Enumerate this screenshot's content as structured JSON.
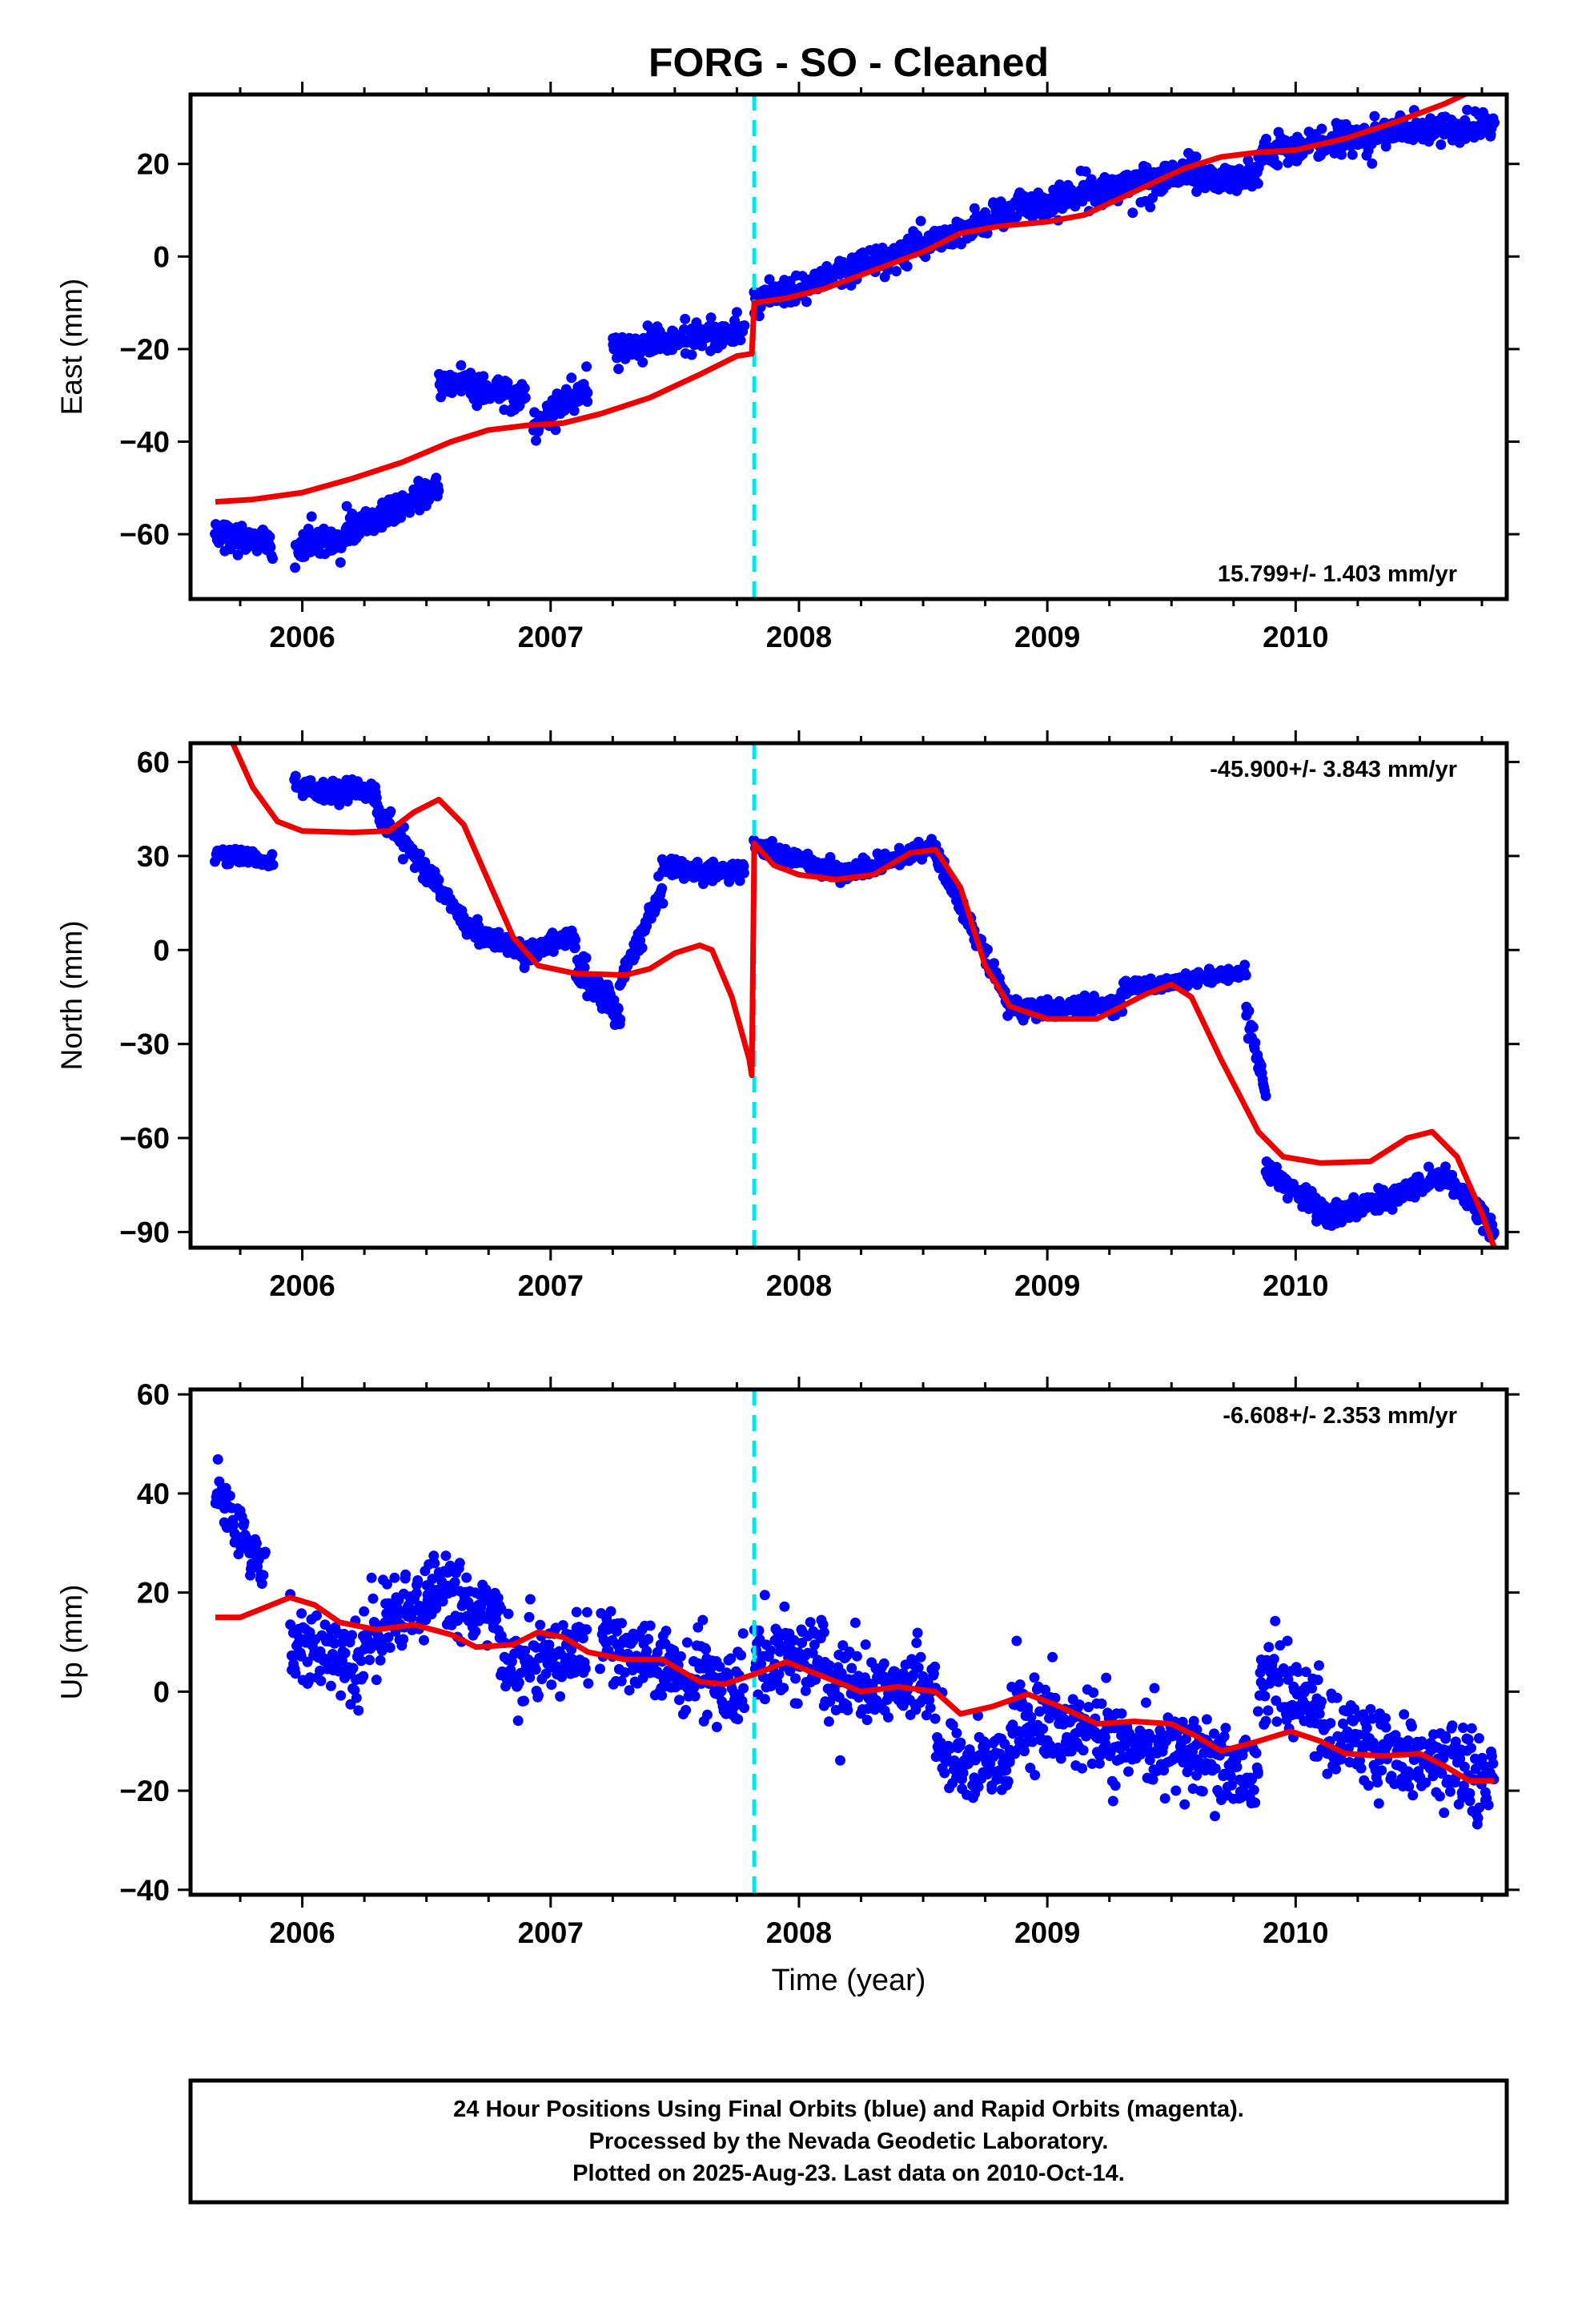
{
  "title": "FORG  - SO - Cleaned",
  "xlabel": "Time (year)",
  "x_range": [
    2005.55,
    2010.85
  ],
  "x_ticks": [
    2006,
    2007,
    2008,
    2009,
    2010
  ],
  "offset_event_year": 2007.82,
  "colors": {
    "final_orbits": "#0000ff",
    "model_fit": "#ee0000",
    "offset_marker": "#00e5ee",
    "frame": "#000000"
  },
  "chart_data": [
    {
      "type": "scatter",
      "name": "east",
      "ylabel": "East (mm)",
      "ylim": [
        -74,
        35
      ],
      "y_ticks": [
        -60,
        -40,
        -20,
        0,
        20
      ],
      "rate_label": "15.799+/- 1.403 mm/yr",
      "rate_position": "bottom-right",
      "fit_points": [
        [
          2005.65,
          -53
        ],
        [
          2005.8,
          -52.5
        ],
        [
          2006.0,
          -51
        ],
        [
          2006.2,
          -48
        ],
        [
          2006.4,
          -44.5
        ],
        [
          2006.6,
          -40
        ],
        [
          2006.75,
          -37.5
        ],
        [
          2006.9,
          -36.5
        ],
        [
          2007.05,
          -36
        ],
        [
          2007.2,
          -34
        ],
        [
          2007.4,
          -30.5
        ],
        [
          2007.6,
          -25.5
        ],
        [
          2007.75,
          -21.5
        ],
        [
          2007.81,
          -21
        ],
        [
          2007.82,
          -10
        ],
        [
          2007.95,
          -9
        ],
        [
          2008.1,
          -7
        ],
        [
          2008.3,
          -3
        ],
        [
          2008.5,
          1
        ],
        [
          2008.65,
          5
        ],
        [
          2008.8,
          6.5
        ],
        [
          2009.0,
          7.5
        ],
        [
          2009.15,
          9
        ],
        [
          2009.35,
          14
        ],
        [
          2009.55,
          19
        ],
        [
          2009.7,
          21.5
        ],
        [
          2009.85,
          22.5
        ],
        [
          2010.0,
          23
        ],
        [
          2010.2,
          25.5
        ],
        [
          2010.4,
          29
        ],
        [
          2010.6,
          33
        ],
        [
          2010.72,
          36
        ]
      ],
      "data_segments": [
        {
          "t0": 2005.65,
          "t1": 2005.88,
          "start": -60,
          "end": -61,
          "noise": 2.5
        },
        {
          "t0": 2005.97,
          "t1": 2006.2,
          "start": -64,
          "end": -59,
          "noise": 3.2
        },
        {
          "t0": 2006.2,
          "t1": 2006.55,
          "start": -59,
          "end": -50,
          "noise": 2.5
        },
        {
          "t0": 2006.55,
          "t1": 2006.9,
          "start": -27,
          "end": -30,
          "noise": 3
        },
        {
          "t0": 2006.93,
          "t1": 2007.15,
          "start": -36,
          "end": -28,
          "noise": 3
        },
        {
          "t0": 2007.25,
          "t1": 2007.78,
          "start": -20,
          "end": -16,
          "noise": 2.5
        },
        {
          "t0": 2007.82,
          "t1": 2008.3,
          "start": -10,
          "end": -1,
          "noise": 2.5
        },
        {
          "t0": 2008.3,
          "t1": 2008.85,
          "start": -1,
          "end": 9,
          "noise": 2.5
        },
        {
          "t0": 2008.85,
          "t1": 2009.6,
          "start": 10,
          "end": 19,
          "noise": 3
        },
        {
          "t0": 2009.6,
          "t1": 2009.85,
          "start": 17,
          "end": 17,
          "noise": 2.5
        },
        {
          "t0": 2009.85,
          "t1": 2010.4,
          "start": 22,
          "end": 27,
          "noise": 2.5
        },
        {
          "t0": 2010.4,
          "t1": 2010.8,
          "start": 27,
          "end": 28,
          "noise": 2.5
        }
      ]
    },
    {
      "type": "scatter",
      "name": "north",
      "ylabel": "North (mm)",
      "ylim": [
        -95,
        66
      ],
      "y_ticks": [
        -90,
        -60,
        -30,
        0,
        30,
        60
      ],
      "rate_label": "-45.900+/- 3.843 mm/yr",
      "rate_position": "top-right",
      "fit_points": [
        [
          2005.72,
          66
        ],
        [
          2005.8,
          52
        ],
        [
          2005.9,
          41
        ],
        [
          2006.0,
          38
        ],
        [
          2006.2,
          37.5
        ],
        [
          2006.35,
          38
        ],
        [
          2006.45,
          44
        ],
        [
          2006.55,
          48
        ],
        [
          2006.65,
          40
        ],
        [
          2006.75,
          22
        ],
        [
          2006.85,
          4
        ],
        [
          2006.95,
          -5
        ],
        [
          2007.1,
          -7.5
        ],
        [
          2007.3,
          -8
        ],
        [
          2007.4,
          -6
        ],
        [
          2007.5,
          -1
        ],
        [
          2007.6,
          1.5
        ],
        [
          2007.65,
          0
        ],
        [
          2007.73,
          -15
        ],
        [
          2007.8,
          -35
        ],
        [
          2007.81,
          -40
        ],
        [
          2007.82,
          34
        ],
        [
          2007.9,
          27
        ],
        [
          2008.0,
          24
        ],
        [
          2008.15,
          22.5
        ],
        [
          2008.3,
          24
        ],
        [
          2008.45,
          31
        ],
        [
          2008.55,
          32
        ],
        [
          2008.65,
          20
        ],
        [
          2008.75,
          -5
        ],
        [
          2008.85,
          -18
        ],
        [
          2009.0,
          -22
        ],
        [
          2009.2,
          -22
        ],
        [
          2009.4,
          -14
        ],
        [
          2009.5,
          -11
        ],
        [
          2009.58,
          -15
        ],
        [
          2009.7,
          -35
        ],
        [
          2009.85,
          -58
        ],
        [
          2009.95,
          -66
        ],
        [
          2010.1,
          -68
        ],
        [
          2010.3,
          -67.5
        ],
        [
          2010.45,
          -60
        ],
        [
          2010.55,
          -58
        ],
        [
          2010.65,
          -66
        ],
        [
          2010.75,
          -84
        ],
        [
          2010.8,
          -95
        ]
      ],
      "data_segments": [
        {
          "t0": 2005.65,
          "t1": 2005.88,
          "start": 31,
          "end": 28,
          "noise": 2
        },
        {
          "t0": 2005.97,
          "t1": 2006.3,
          "start": 52,
          "end": 50,
          "noise": 3
        },
        {
          "t0": 2006.3,
          "t1": 2006.65,
          "start": 45,
          "end": 10,
          "noise": 3
        },
        {
          "t0": 2006.65,
          "t1": 2006.9,
          "start": 8,
          "end": -2,
          "noise": 2.5
        },
        {
          "t0": 2006.9,
          "t1": 2007.1,
          "start": -1,
          "end": 5,
          "noise": 2.5
        },
        {
          "t0": 2007.1,
          "t1": 2007.28,
          "start": -5,
          "end": -22,
          "noise": 4
        },
        {
          "t0": 2007.28,
          "t1": 2007.45,
          "start": -10,
          "end": 20,
          "noise": 3
        },
        {
          "t0": 2007.45,
          "t1": 2007.78,
          "start": 26,
          "end": 25,
          "noise": 2.5
        },
        {
          "t0": 2007.82,
          "t1": 2008.2,
          "start": 33,
          "end": 24,
          "noise": 2.5
        },
        {
          "t0": 2008.2,
          "t1": 2008.55,
          "start": 25,
          "end": 33,
          "noise": 2.5
        },
        {
          "t0": 2008.55,
          "t1": 2008.85,
          "start": 30,
          "end": -18,
          "noise": 3
        },
        {
          "t0": 2008.85,
          "t1": 2009.3,
          "start": -19,
          "end": -17,
          "noise": 2.5
        },
        {
          "t0": 2009.3,
          "t1": 2009.8,
          "start": -12,
          "end": -7,
          "noise": 2
        },
        {
          "t0": 2009.8,
          "t1": 2009.88,
          "start": -20,
          "end": -45,
          "noise": 4
        },
        {
          "t0": 2009.88,
          "t1": 2010.15,
          "start": -70,
          "end": -86,
          "noise": 3
        },
        {
          "t0": 2010.15,
          "t1": 2010.6,
          "start": -85,
          "end": -72,
          "noise": 3
        },
        {
          "t0": 2010.6,
          "t1": 2010.8,
          "start": -72,
          "end": -90,
          "noise": 3
        }
      ]
    },
    {
      "type": "scatter",
      "name": "up",
      "ylabel": "Up (mm)",
      "ylim": [
        -41,
        61
      ],
      "y_ticks": [
        -40,
        -20,
        0,
        20,
        40,
        60
      ],
      "rate_label": "-6.608+/- 2.353 mm/yr",
      "rate_position": "top-right",
      "fit_points": [
        [
          2005.65,
          15
        ],
        [
          2005.75,
          15
        ],
        [
          2005.85,
          17
        ],
        [
          2005.95,
          19
        ],
        [
          2006.05,
          17.5
        ],
        [
          2006.15,
          14
        ],
        [
          2006.3,
          12.5
        ],
        [
          2006.45,
          13.5
        ],
        [
          2006.6,
          11.5
        ],
        [
          2006.7,
          9
        ],
        [
          2006.85,
          9.5
        ],
        [
          2006.95,
          12
        ],
        [
          2007.05,
          11
        ],
        [
          2007.15,
          8
        ],
        [
          2007.3,
          6.5
        ],
        [
          2007.45,
          6.5
        ],
        [
          2007.6,
          2
        ],
        [
          2007.7,
          1.5
        ],
        [
          2007.82,
          3.5
        ],
        [
          2007.95,
          6
        ],
        [
          2008.1,
          3
        ],
        [
          2008.25,
          0
        ],
        [
          2008.4,
          1
        ],
        [
          2008.55,
          0
        ],
        [
          2008.65,
          -4.5
        ],
        [
          2008.78,
          -3
        ],
        [
          2008.92,
          -0.5
        ],
        [
          2009.05,
          -3
        ],
        [
          2009.2,
          -6.5
        ],
        [
          2009.35,
          -6
        ],
        [
          2009.5,
          -6.5
        ],
        [
          2009.6,
          -9
        ],
        [
          2009.7,
          -12
        ],
        [
          2009.85,
          -10
        ],
        [
          2009.98,
          -8
        ],
        [
          2010.1,
          -10
        ],
        [
          2010.2,
          -12.5
        ],
        [
          2010.35,
          -13
        ],
        [
          2010.5,
          -12.5
        ],
        [
          2010.6,
          -15
        ],
        [
          2010.7,
          -18
        ],
        [
          2010.8,
          -18
        ]
      ],
      "data_segments": [
        {
          "t0": 2005.65,
          "t1": 2005.85,
          "start": 40,
          "end": 25,
          "noise": 5
        },
        {
          "t0": 2005.95,
          "t1": 2006.25,
          "start": 10,
          "end": 5,
          "noise": 7
        },
        {
          "t0": 2006.25,
          "t1": 2006.5,
          "start": 12,
          "end": 18,
          "noise": 7
        },
        {
          "t0": 2006.5,
          "t1": 2006.8,
          "start": 21,
          "end": 15,
          "noise": 6
        },
        {
          "t0": 2006.8,
          "t1": 2007.15,
          "start": 5,
          "end": 8,
          "noise": 7
        },
        {
          "t0": 2007.2,
          "t1": 2007.78,
          "start": 10,
          "end": 0,
          "noise": 7
        },
        {
          "t0": 2007.82,
          "t1": 2008.1,
          "start": 5,
          "end": 8,
          "noise": 7
        },
        {
          "t0": 2008.1,
          "t1": 2008.55,
          "start": 2,
          "end": 0,
          "noise": 7
        },
        {
          "t0": 2008.55,
          "t1": 2008.85,
          "start": -12,
          "end": -15,
          "noise": 7
        },
        {
          "t0": 2008.85,
          "t1": 2009.2,
          "start": -5,
          "end": -8,
          "noise": 7
        },
        {
          "t0": 2009.2,
          "t1": 2009.6,
          "start": -9,
          "end": -12,
          "noise": 7
        },
        {
          "t0": 2009.6,
          "t1": 2009.85,
          "start": -14,
          "end": -16,
          "noise": 7
        },
        {
          "t0": 2009.85,
          "t1": 2010.1,
          "start": 2,
          "end": -2,
          "noise": 7
        },
        {
          "t0": 2010.1,
          "t1": 2010.8,
          "start": -8,
          "end": -18,
          "noise": 7
        }
      ]
    }
  ],
  "footer": {
    "line1": "24 Hour Positions Using Final Orbits (blue) and Rapid Orbits (magenta).",
    "line2": "Processed by the Nevada Geodetic Laboratory.",
    "line3": "Plotted on 2025-Aug-23. Last data on 2010-Oct-14."
  }
}
